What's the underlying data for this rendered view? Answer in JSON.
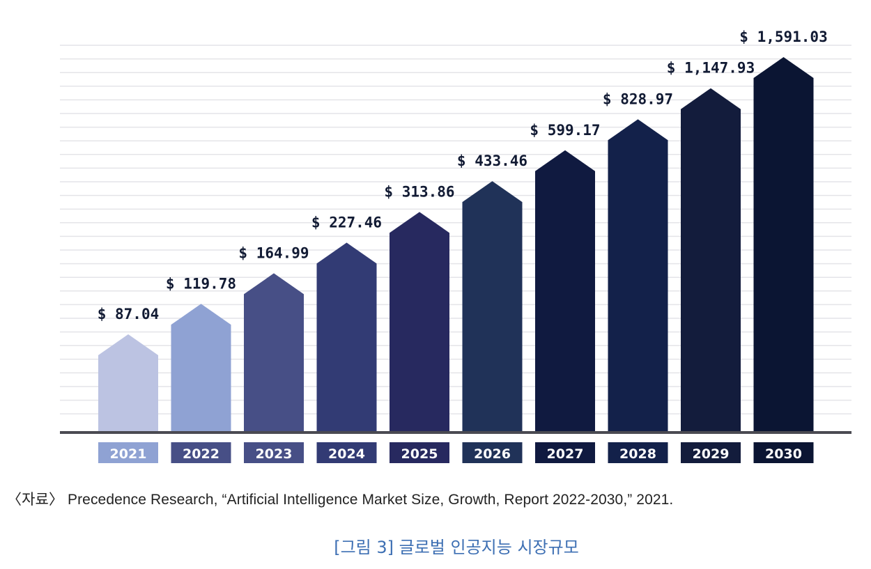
{
  "chart_data": {
    "type": "bar",
    "title": "",
    "xlabel": "",
    "ylabel": "",
    "ylim": [
      0,
      1591.03
    ],
    "grid": true,
    "categories": [
      "2021",
      "2022",
      "2023",
      "2024",
      "2025",
      "2026",
      "2027",
      "2028",
      "2029",
      "2030"
    ],
    "values": [
      87.04,
      119.78,
      164.99,
      227.46,
      313.86,
      433.46,
      599.17,
      828.97,
      1147.93,
      1591.03
    ],
    "value_labels": [
      "$ 87.04",
      "$ 119.78",
      "$ 164.99",
      "$ 227.46",
      "$ 313.86",
      "$ 433.46",
      "$ 599.17",
      "$ 828.97",
      "$ 1,147.93",
      "$ 1,591.03"
    ],
    "bar_colors": [
      "#bcc3e2",
      "#8fa2d3",
      "#474f86",
      "#323b74",
      "#27295f",
      "#203258",
      "#101a40",
      "#13214a",
      "#131c3c",
      "#0b1533"
    ],
    "year_label_colors": [
      "#8fa2d3",
      "#474f86",
      "#474f86",
      "#323b74",
      "#27295f",
      "#203258",
      "#101a40",
      "#13214a",
      "#131c3c",
      "#0b1533"
    ]
  },
  "footer": {
    "source": "〈자료〉 Precedence Research, “Artificial Intelligence Market Size, Growth, Report 2022-2030,” 2021.",
    "caption": "[그림 3] 글로벌 인공지능 시장규모"
  }
}
